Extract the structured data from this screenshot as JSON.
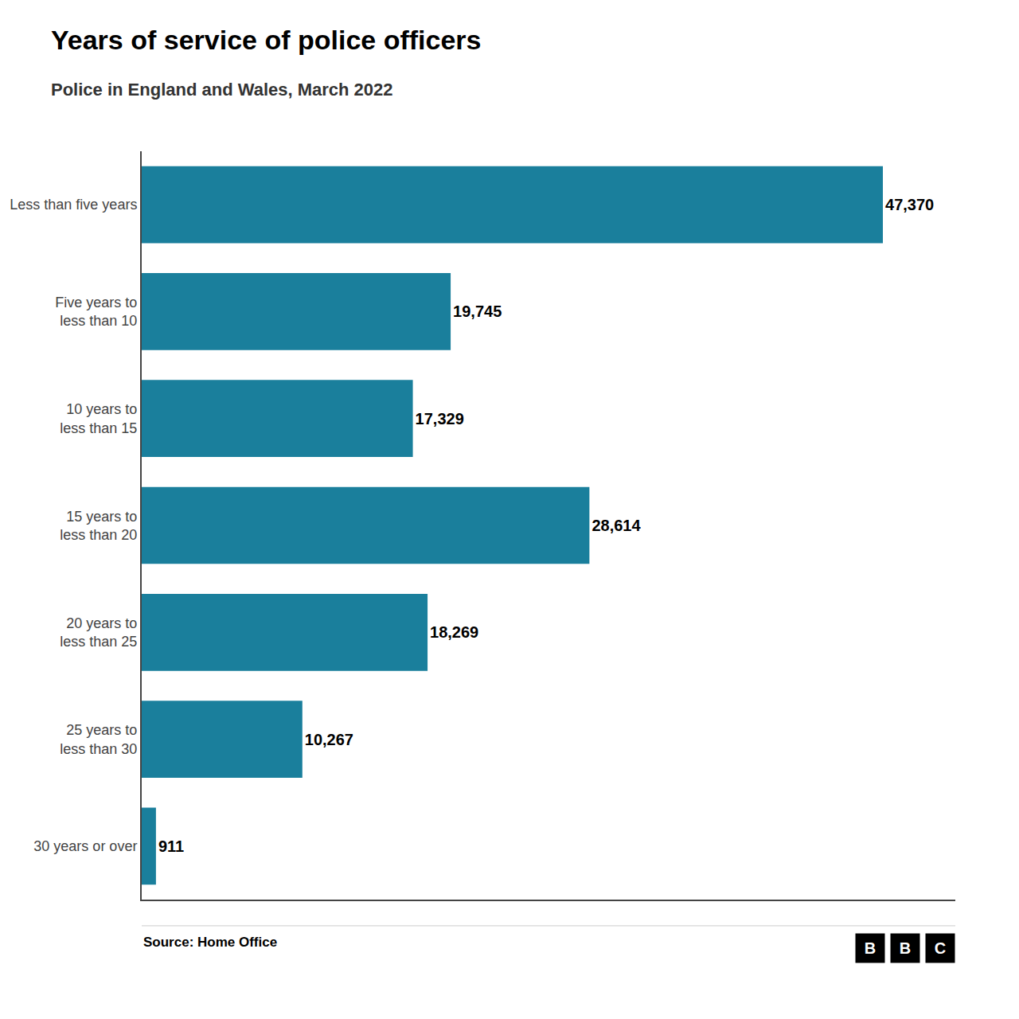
{
  "chart_data": {
    "type": "bar",
    "orientation": "horizontal",
    "title": "Years of service of police officers",
    "subtitle": "Police in England and Wales, March 2022",
    "annotations": [
      "Source: Home Office",
      "BBC"
    ],
    "categories": [
      "Less than five years",
      "Five years to\nless than 10",
      "10 years to\nless than 15",
      "15 years to\nless than 20",
      "20 years to\nless than 25",
      "25 years to\nless than 30",
      "30 years or over"
    ],
    "values": [
      47370,
      19745,
      17329,
      28614,
      18269,
      10267,
      911
    ],
    "value_labels": [
      "47,370",
      "19,745",
      "17,329",
      "28,614",
      "18,269",
      "10,267",
      "911"
    ],
    "data_labels": true,
    "color": "#1a7f9c",
    "xlim": [
      0,
      52000
    ],
    "xticks": [],
    "tick_labels": "y",
    "grid": false
  }
}
